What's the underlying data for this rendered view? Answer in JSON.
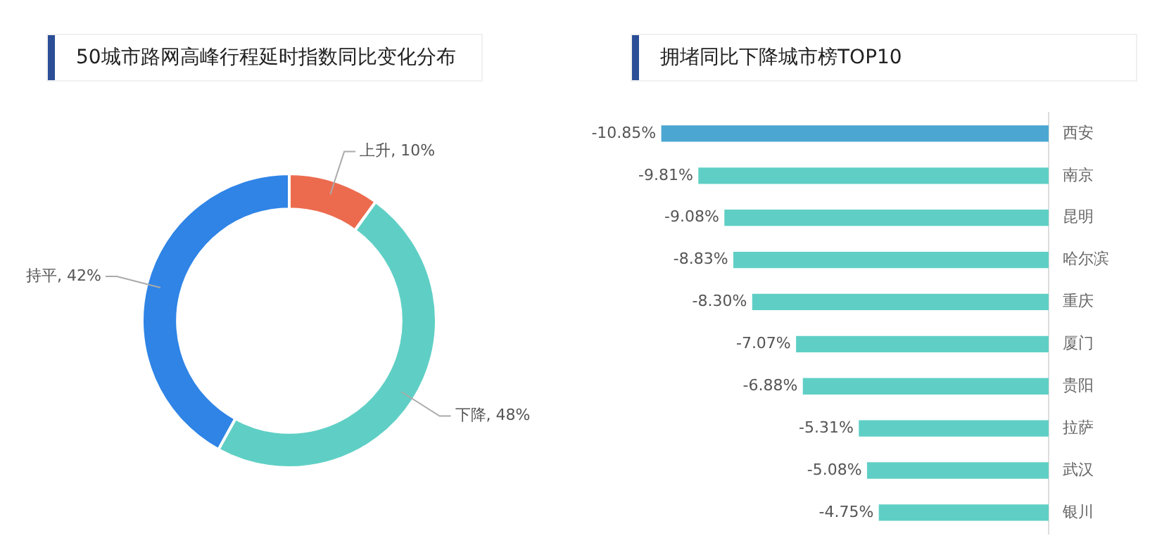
{
  "chart_data": [
    {
      "type": "donut",
      "title": "50城市路网高峰行程延时指数同比变化分布",
      "categories": [
        "上升",
        "下降",
        "持平"
      ],
      "values": [
        10,
        48,
        42
      ],
      "colors": [
        "#ec6b4f",
        "#5fcfc5",
        "#2f84e6"
      ],
      "value_labels": [
        "10%",
        "48%",
        "42%"
      ]
    },
    {
      "type": "bar",
      "orientation": "horizontal",
      "title": "拥堵同比下降城市榜TOP10",
      "categories": [
        "西安",
        "南京",
        "昆明",
        "哈尔滨",
        "重庆",
        "厦门",
        "贵阳",
        "拉萨",
        "武汉",
        "银川"
      ],
      "values": [
        -10.85,
        -9.81,
        -9.08,
        -8.83,
        -8.3,
        -7.07,
        -6.88,
        -5.31,
        -5.08,
        -4.75
      ],
      "colors": [
        "#4ba7d1",
        "#5fcfc5",
        "#5fcfc5",
        "#5fcfc5",
        "#5fcfc5",
        "#5fcfc5",
        "#5fcfc5",
        "#5fcfc5",
        "#5fcfc5",
        "#5fcfc5"
      ],
      "value_labels": [
        "-10.85%",
        "-9.81%",
        "-9.08%",
        "-8.83%",
        "-8.30%",
        "-7.07%",
        "-6.88%",
        "-5.31%",
        "-5.08%",
        "-4.75%"
      ],
      "tick_labels": "y"
    }
  ]
}
